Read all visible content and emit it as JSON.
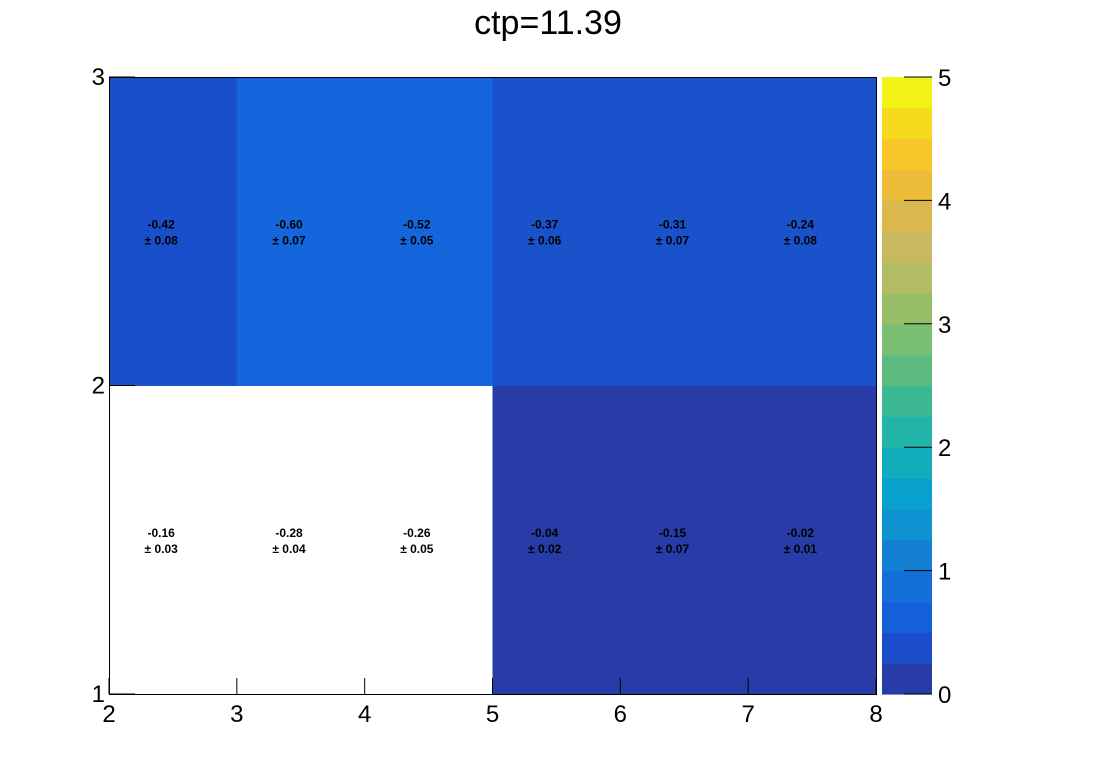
{
  "chart_data": {
    "type": "heatmap",
    "title": "ctp=11.39",
    "xlabel": "",
    "ylabel": "",
    "x_edges": [
      2,
      3,
      4,
      5,
      6,
      7,
      8
    ],
    "y_edges": [
      1,
      2,
      3
    ],
    "xlim": [
      2,
      8
    ],
    "ylim": [
      1,
      3
    ],
    "x_ticks": [
      "2",
      "3",
      "4",
      "5",
      "6",
      "7",
      "8"
    ],
    "y_ticks": [
      "1",
      "2",
      "3"
    ],
    "colorbar": {
      "range": [
        0,
        5
      ],
      "ticks": [
        "0",
        "1",
        "2",
        "3",
        "4",
        "5"
      ]
    },
    "grid": false,
    "cells": [
      {
        "row": 0,
        "col": 0,
        "value": "-0.16",
        "error": "± 0.03",
        "fill": "#ffffff"
      },
      {
        "row": 0,
        "col": 1,
        "value": "-0.28",
        "error": "± 0.04",
        "fill": "#ffffff"
      },
      {
        "row": 0,
        "col": 2,
        "value": "-0.26",
        "error": "± 0.05",
        "fill": "#ffffff"
      },
      {
        "row": 0,
        "col": 3,
        "value": "-0.04",
        "error": "± 0.02",
        "fill": "#283ca7"
      },
      {
        "row": 0,
        "col": 4,
        "value": "-0.15",
        "error": "± 0.07",
        "fill": "#283ca7"
      },
      {
        "row": 0,
        "col": 5,
        "value": "-0.02",
        "error": "± 0.01",
        "fill": "#283ca7"
      },
      {
        "row": 1,
        "col": 0,
        "value": "-0.42",
        "error": "± 0.08",
        "fill": "#1a4fcc"
      },
      {
        "row": 1,
        "col": 1,
        "value": "-0.60",
        "error": "± 0.07",
        "fill": "#1366dc"
      },
      {
        "row": 1,
        "col": 2,
        "value": "-0.52",
        "error": "± 0.05",
        "fill": "#1366dc"
      },
      {
        "row": 1,
        "col": 3,
        "value": "-0.37",
        "error": "± 0.06",
        "fill": "#1a52cc"
      },
      {
        "row": 1,
        "col": 4,
        "value": "-0.31",
        "error": "± 0.07",
        "fill": "#1a52cc"
      },
      {
        "row": 1,
        "col": 5,
        "value": "-0.24",
        "error": "± 0.08",
        "fill": "#1a52cc"
      }
    ],
    "palette": [
      "#283ca7",
      "#1a4ccc",
      "#1460d8",
      "#1370da",
      "#1480d4",
      "#0e92d2",
      "#08a0cc",
      "#12acbc",
      "#22b4a8",
      "#3cb894",
      "#5cbc80",
      "#7abe74",
      "#98be68",
      "#b2bc62",
      "#c8b860",
      "#dab84e",
      "#ecbc38",
      "#f8c628",
      "#f6da1e",
      "#f2f216"
    ]
  }
}
